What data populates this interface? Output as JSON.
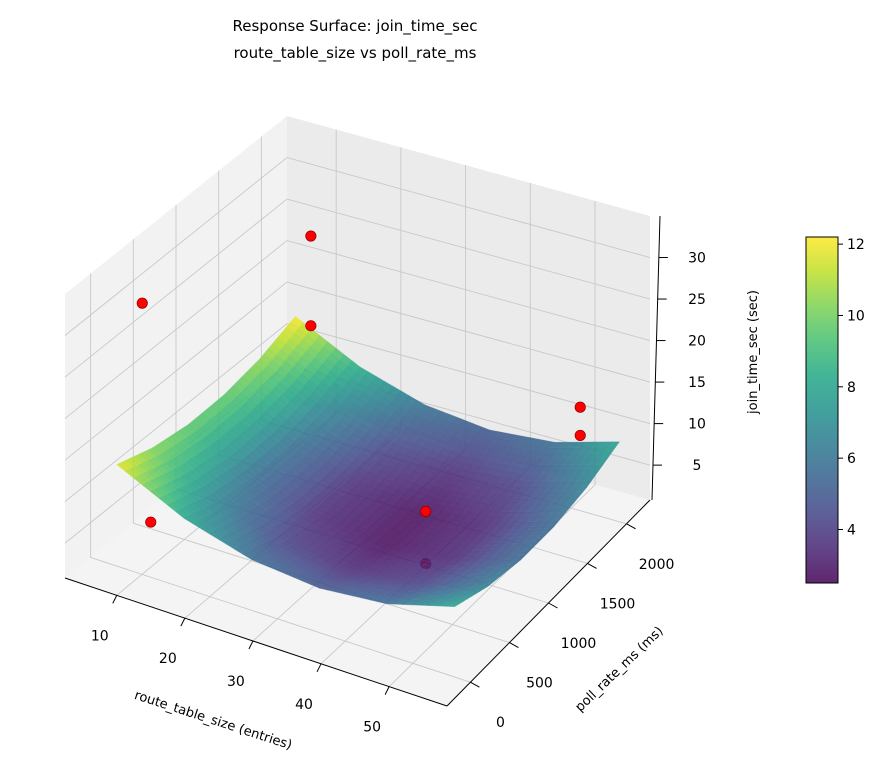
{
  "chart_data": {
    "type": "surface3d",
    "title": "Response Surface: join_time_sec",
    "subtitle": "route_table_size vs poll_rate_ms",
    "xlabel": "route_table_size (entries)",
    "ylabel": "poll_rate_ms (ms)",
    "zlabel": "join_time_sec (sec)",
    "xlim": [
      2.4,
      58.5
    ],
    "ylim": [
      -300,
      2300
    ],
    "zlim": [
      0.8,
      35
    ],
    "xticks": [
      "10",
      "20",
      "30",
      "40",
      "50"
    ],
    "yticks": [
      "0",
      "500",
      "1000",
      "1500",
      "2000"
    ],
    "zticks": [
      "5",
      "10",
      "15",
      "20",
      "25",
      "30"
    ],
    "grid": true,
    "colormap": "viridis",
    "surface": {
      "x": [
        5,
        15,
        25,
        35,
        45,
        55
      ],
      "y": [
        100,
        520,
        940,
        1360,
        1780,
        2200
      ],
      "z": [
        [
          11.86,
          8.01,
          5.7,
          4.93,
          5.7,
          8.01
        ],
        [
          10.38,
          6.52,
          4.19,
          3.41,
          4.16,
          6.45
        ],
        [
          9.69,
          5.81,
          3.46,
          2.66,
          3.4,
          5.68
        ],
        [
          9.77,
          5.87,
          3.51,
          2.69,
          3.42,
          5.68
        ],
        [
          10.62,
          6.71,
          4.34,
          3.5,
          4.21,
          6.45
        ],
        [
          12.26,
          8.33,
          5.94,
          5.09,
          5.78,
          8.01
        ]
      ],
      "alpha": 0.85
    },
    "points": [
      {
        "x": 5,
        "y": 400,
        "z": 28.8
      },
      {
        "x": 10,
        "y": 2000,
        "z": 24.7
      },
      {
        "x": 10,
        "y": 2000,
        "z": 13.9
      },
      {
        "x": 5,
        "y": 500,
        "z": 1.6
      },
      {
        "x": 40,
        "y": 1000,
        "z": 7.3
      },
      {
        "x": 40,
        "y": 1000,
        "z": 1.0
      },
      {
        "x": 55,
        "y": 1700,
        "z": 16.9
      },
      {
        "x": 55,
        "y": 1700,
        "z": 13.5
      }
    ],
    "point_color": "#ff0000",
    "colorbar": {
      "range": [
        2.5,
        12.2
      ],
      "ticks": [
        "4",
        "6",
        "8",
        "10",
        "12"
      ]
    }
  }
}
